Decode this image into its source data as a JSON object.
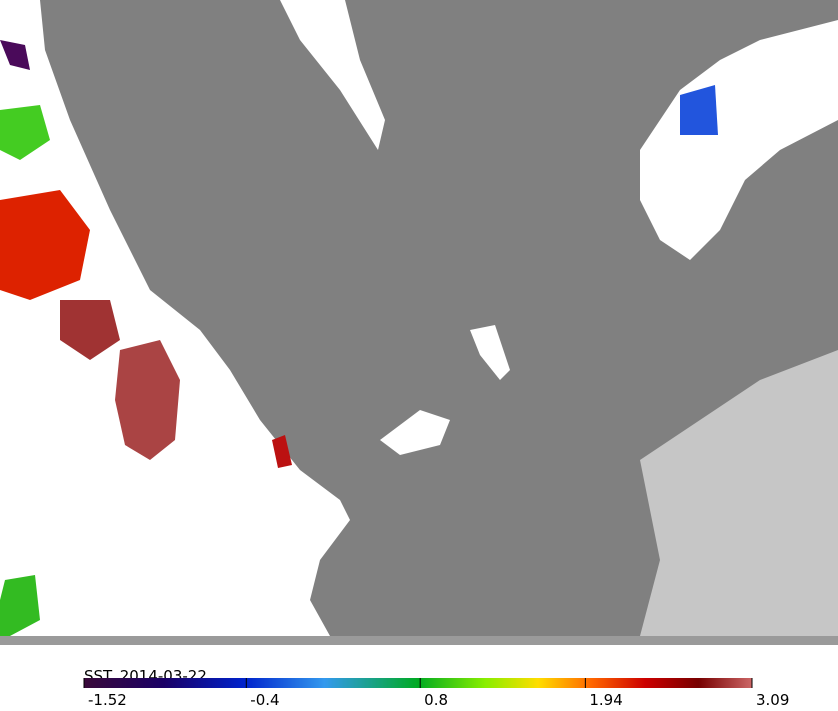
{
  "map": {
    "title": "SST_2014-03-22",
    "colorbar": {
      "lim": [
        -1.52,
        3.09
      ],
      "ticks": [
        -1.52,
        -0.4,
        0.8,
        1.94,
        3.09
      ]
    }
  }
}
